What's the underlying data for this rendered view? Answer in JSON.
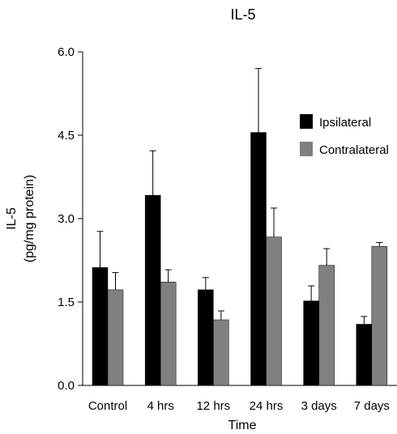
{
  "chart_data": {
    "type": "bar",
    "title": "IL-5",
    "xlabel": "Time",
    "ylabel_lines": [
      "IL-5",
      "(pg/mg protein)"
    ],
    "ylim": [
      0,
      6.0
    ],
    "yticks": [
      "0.0",
      "1.5",
      "3.0",
      "4.5",
      "6.0"
    ],
    "ytick_values": [
      0,
      1.5,
      3.0,
      4.5,
      6.0
    ],
    "categories": [
      "Control",
      "4 hrs",
      "12 hrs",
      "24 hrs",
      "3 days",
      "7 days"
    ],
    "series": [
      {
        "name": "Ipsilateral",
        "color": "#000000",
        "values": [
          2.12,
          3.42,
          1.72,
          4.55,
          1.52,
          1.1
        ],
        "errors": [
          0.65,
          0.8,
          0.22,
          1.15,
          0.27,
          0.14
        ]
      },
      {
        "name": "Contralateral",
        "color": "#808080",
        "values": [
          1.72,
          1.86,
          1.18,
          2.67,
          2.16,
          2.5
        ],
        "errors": [
          0.31,
          0.22,
          0.16,
          0.52,
          0.3,
          0.07
        ]
      }
    ],
    "legend_position": "upper-right",
    "grid": false
  }
}
